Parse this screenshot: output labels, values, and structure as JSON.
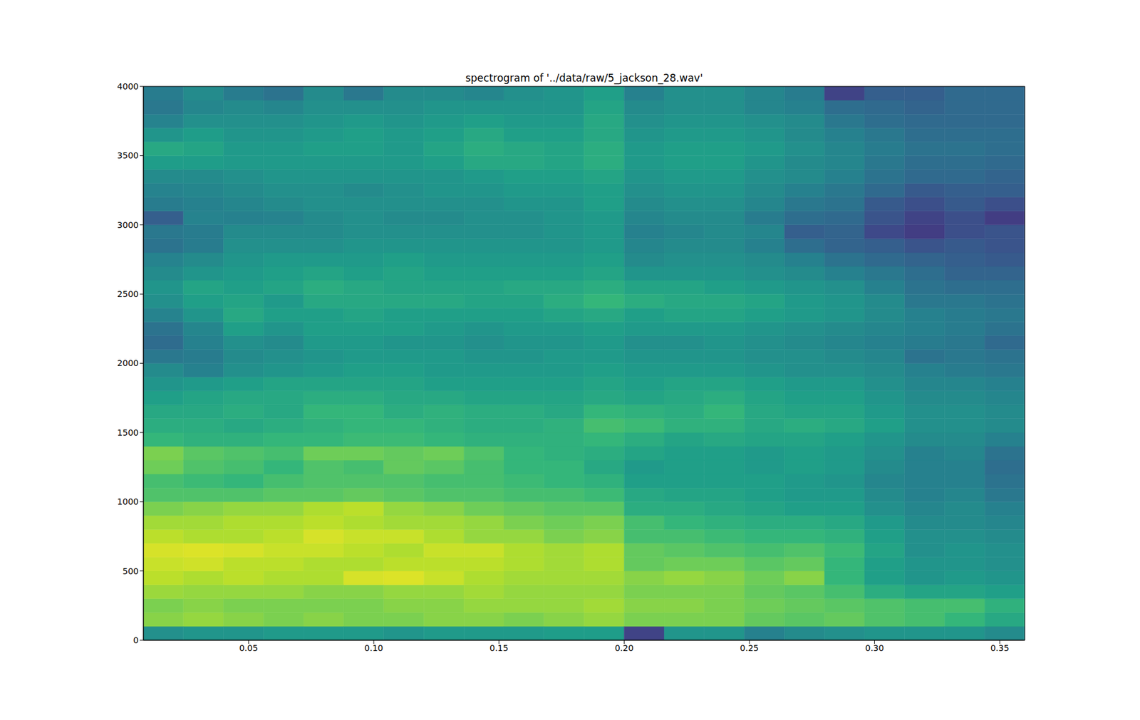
{
  "chart_data": {
    "type": "heatmap",
    "title": "spectrogram of '../data/raw/5_jackson_28.wav'",
    "xlim": [
      0.008,
      0.36
    ],
    "ylim": [
      0,
      4000
    ],
    "xticks": [
      0.05,
      {
        "value": 0.1,
        "label": "0.10"
      },
      0.15,
      {
        "value": 0.2,
        "label": "0.20"
      },
      0.25,
      {
        "value": 0.3,
        "label": "0.30"
      },
      0.35
    ],
    "yticks": [
      0,
      500,
      1000,
      1500,
      2000,
      2500,
      3000,
      3500,
      4000
    ],
    "grid": false,
    "x_edges": [
      0.008,
      0.024,
      0.04,
      0.056,
      0.072,
      0.088,
      0.104,
      0.12,
      0.136,
      0.152,
      0.168,
      0.184,
      0.2,
      0.216,
      0.232,
      0.248,
      0.264,
      0.28,
      0.296,
      0.312,
      0.328,
      0.344,
      0.36
    ],
    "y_edges": [
      0,
      100,
      200,
      300,
      400,
      500,
      600,
      700,
      800,
      900,
      1000,
      1100,
      1200,
      1300,
      1400,
      1500,
      1600,
      1700,
      1800,
      1900,
      2000,
      2100,
      2200,
      2300,
      2400,
      2500,
      2600,
      2700,
      2800,
      2900,
      3000,
      3100,
      3200,
      3300,
      3400,
      3500,
      3600,
      3700,
      3800,
      3900,
      4000
    ],
    "color_range": [
      0,
      100
    ],
    "cells": [
      [
        50,
        82,
        80,
        85,
        90,
        92,
        94,
        90,
        86,
        80,
        72,
        70,
        78,
        80,
        66,
        62,
        60,
        56,
        52,
        48,
        40,
        35,
        38,
        45,
        50,
        52,
        48,
        45,
        38,
        40,
        30,
        42,
        45,
        48,
        55,
        60,
        52,
        45,
        40,
        42
      ],
      [
        52,
        84,
        82,
        84,
        88,
        93,
        95,
        88,
        86,
        82,
        72,
        68,
        72,
        74,
        64,
        62,
        60,
        58,
        54,
        44,
        42,
        44,
        46,
        52,
        56,
        58,
        52,
        48,
        42,
        42,
        45,
        44,
        46,
        48,
        55,
        58,
        55,
        50,
        46,
        48
      ],
      [
        52,
        82,
        80,
        84,
        90,
        90,
        94,
        88,
        88,
        84,
        72,
        66,
        70,
        72,
        64,
        60,
        62,
        60,
        56,
        50,
        48,
        50,
        56,
        60,
        58,
        56,
        54,
        52,
        50,
        48,
        44,
        46,
        48,
        50,
        54,
        54,
        52,
        50,
        48,
        42
      ],
      [
        54,
        80,
        80,
        84,
        88,
        90,
        92,
        90,
        88,
        84,
        74,
        70,
        66,
        70,
        66,
        62,
        60,
        60,
        58,
        52,
        50,
        48,
        52,
        56,
        54,
        58,
        56,
        54,
        50,
        48,
        45,
        48,
        50,
        52,
        54,
        54,
        52,
        50,
        46,
        38
      ],
      [
        54,
        82,
        80,
        82,
        88,
        88,
        92,
        94,
        90,
        88,
        74,
        72,
        72,
        78,
        66,
        64,
        66,
        62,
        58,
        54,
        52,
        54,
        56,
        56,
        60,
        62,
        58,
        54,
        50,
        48,
        48,
        50,
        50,
        52,
        54,
        56,
        54,
        52,
        50,
        48
      ],
      [
        54,
        80,
        80,
        82,
        94,
        88,
        90,
        92,
        88,
        90,
        76,
        72,
        70,
        78,
        68,
        66,
        66,
        62,
        58,
        56,
        54,
        54,
        56,
        58,
        60,
        60,
        56,
        54,
        52,
        50,
        50,
        50,
        48,
        52,
        54,
        56,
        56,
        54,
        50,
        40
      ],
      [
        52,
        80,
        82,
        84,
        95,
        90,
        88,
        92,
        86,
        84,
        74,
        72,
        76,
        76,
        68,
        66,
        62,
        60,
        58,
        56,
        54,
        52,
        56,
        56,
        60,
        58,
        58,
        56,
        52,
        50,
        48,
        50,
        50,
        52,
        54,
        54,
        54,
        52,
        50,
        48
      ],
      [
        54,
        82,
        82,
        84,
        92,
        90,
        92,
        88,
        86,
        82,
        72,
        70,
        74,
        78,
        66,
        64,
        64,
        60,
        56,
        54,
        54,
        52,
        54,
        56,
        60,
        58,
        56,
        54,
        52,
        50,
        48,
        50,
        52,
        52,
        56,
        58,
        56,
        54,
        52,
        48
      ],
      [
        54,
        82,
        84,
        86,
        88,
        90,
        92,
        84,
        84,
        78,
        72,
        70,
        70,
        72,
        64,
        62,
        62,
        58,
        56,
        54,
        52,
        50,
        52,
        56,
        58,
        58,
        56,
        54,
        52,
        50,
        50,
        50,
        52,
        54,
        60,
        62,
        60,
        56,
        52,
        46
      ],
      [
        54,
        80,
        84,
        84,
        86,
        88,
        88,
        84,
        80,
        76,
        70,
        68,
        66,
        66,
        64,
        62,
        62,
        58,
        56,
        54,
        52,
        52,
        54,
        56,
        58,
        60,
        56,
        54,
        52,
        50,
        50,
        52,
        54,
        56,
        60,
        60,
        56,
        54,
        52,
        50
      ],
      [
        55,
        82,
        84,
        84,
        86,
        86,
        86,
        80,
        78,
        74,
        70,
        66,
        66,
        64,
        64,
        64,
        60,
        58,
        56,
        54,
        54,
        52,
        54,
        58,
        62,
        60,
        56,
        54,
        52,
        52,
        52,
        52,
        54,
        56,
        58,
        58,
        56,
        54,
        52,
        52
      ],
      [
        55,
        84,
        86,
        84,
        86,
        88,
        88,
        82,
        80,
        74,
        68,
        64,
        60,
        62,
        66,
        70,
        66,
        60,
        58,
        56,
        54,
        54,
        56,
        60,
        66,
        62,
        58,
        56,
        54,
        54,
        54,
        56,
        56,
        58,
        62,
        62,
        60,
        60,
        58,
        56
      ],
      [
        20,
        80,
        82,
        80,
        82,
        76,
        76,
        70,
        70,
        62,
        60,
        56,
        54,
        58,
        62,
        68,
        64,
        58,
        56,
        54,
        52,
        50,
        54,
        56,
        62,
        58,
        52,
        48,
        46,
        44,
        46,
        48,
        50,
        52,
        54,
        54,
        52,
        50,
        48,
        44
      ],
      [
        52,
        80,
        82,
        80,
        84,
        78,
        74,
        70,
        66,
        62,
        58,
        56,
        56,
        56,
        58,
        64,
        62,
        60,
        58,
        54,
        52,
        50,
        54,
        58,
        60,
        58,
        52,
        50,
        48,
        46,
        48,
        50,
        52,
        54,
        56,
        56,
        54,
        52,
        50,
        50
      ],
      [
        52,
        80,
        80,
        80,
        82,
        78,
        72,
        68,
        64,
        60,
        58,
        56,
        56,
        56,
        60,
        64,
        66,
        62,
        58,
        54,
        52,
        52,
        54,
        58,
        60,
        56,
        52,
        50,
        48,
        48,
        48,
        50,
        52,
        54,
        56,
        56,
        54,
        52,
        50,
        50
      ],
      [
        44,
        76,
        78,
        76,
        78,
        74,
        70,
        66,
        62,
        58,
        56,
        56,
        54,
        54,
        58,
        60,
        60,
        58,
        56,
        52,
        50,
        50,
        52,
        56,
        58,
        54,
        50,
        48,
        44,
        46,
        42,
        46,
        48,
        50,
        52,
        54,
        52,
        50,
        46,
        46
      ],
      [
        48,
        74,
        76,
        74,
        82,
        76,
        72,
        66,
        62,
        56,
        54,
        54,
        56,
        56,
        58,
        62,
        58,
        56,
        54,
        50,
        50,
        48,
        50,
        54,
        54,
        52,
        48,
        44,
        36,
        30,
        36,
        40,
        44,
        48,
        48,
        50,
        48,
        48,
        44,
        42
      ],
      [
        50,
        76,
        74,
        70,
        66,
        66,
        68,
        64,
        60,
        56,
        54,
        52,
        54,
        54,
        56,
        60,
        58,
        56,
        54,
        50,
        48,
        46,
        48,
        52,
        52,
        50,
        44,
        38,
        32,
        32,
        34,
        38,
        40,
        44,
        46,
        46,
        44,
        40,
        36,
        20
      ],
      [
        52,
        72,
        72,
        62,
        56,
        56,
        58,
        56,
        54,
        50,
        48,
        46,
        48,
        50,
        52,
        56,
        54,
        52,
        50,
        48,
        46,
        44,
        46,
        48,
        48,
        44,
        40,
        34,
        30,
        22,
        26,
        28,
        34,
        38,
        40,
        42,
        40,
        36,
        34,
        30
      ],
      [
        52,
        70,
        70,
        58,
        52,
        52,
        50,
        50,
        48,
        46,
        44,
        44,
        44,
        44,
        48,
        50,
        50,
        48,
        46,
        44,
        38,
        42,
        44,
        44,
        40,
        38,
        36,
        32,
        26,
        18,
        20,
        24,
        28,
        34,
        36,
        38,
        36,
        34,
        32,
        30
      ],
      [
        52,
        66,
        70,
        58,
        54,
        52,
        52,
        50,
        48,
        48,
        46,
        44,
        44,
        46,
        48,
        50,
        50,
        48,
        46,
        42,
        40,
        40,
        42,
        42,
        40,
        36,
        32,
        30,
        28,
        24,
        24,
        28,
        30,
        34,
        36,
        38,
        36,
        34,
        34,
        34
      ],
      [
        48,
        60,
        64,
        56,
        52,
        50,
        50,
        48,
        46,
        44,
        40,
        38,
        36,
        38,
        44,
        48,
        48,
        46,
        44,
        40,
        38,
        34,
        38,
        40,
        38,
        36,
        32,
        28,
        26,
        26,
        18,
        24,
        30,
        32,
        34,
        36,
        36,
        34,
        34,
        34
      ]
    ]
  }
}
